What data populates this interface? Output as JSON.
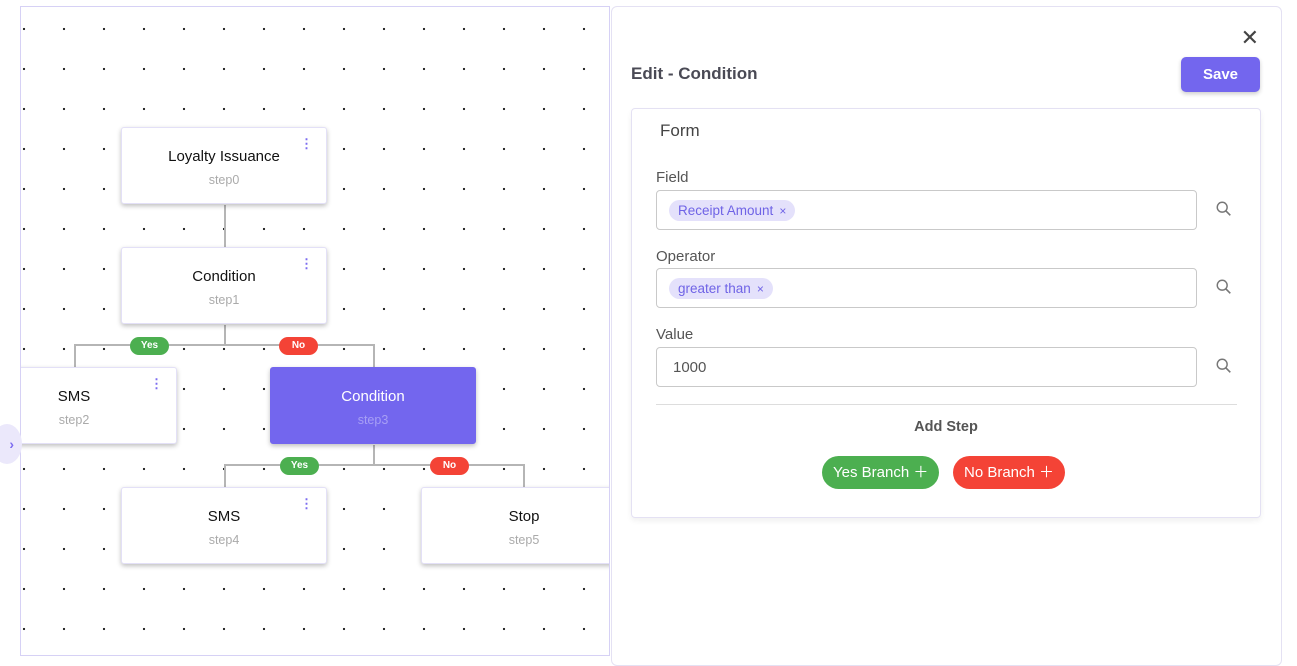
{
  "canvas": {
    "nodes": [
      {
        "title": "Loyalty Issuance",
        "step": "step0"
      },
      {
        "title": "Condition",
        "step": "step1"
      },
      {
        "title": "SMS",
        "step": "step2"
      },
      {
        "title": "Condition",
        "step": "step3",
        "active": true
      },
      {
        "title": "SMS",
        "step": "step4"
      },
      {
        "title": "Stop",
        "step": "step5"
      }
    ],
    "yes_label": "Yes",
    "no_label": "No",
    "menu_glyph": "⋮",
    "toggle_glyph": "›"
  },
  "panel": {
    "close_glyph": "✕",
    "title": "Edit - Condition",
    "save_label": "Save",
    "form": {
      "title": "Form",
      "field": {
        "label": "Field",
        "chip": "Receipt Amount"
      },
      "operator": {
        "label": "Operator",
        "chip": "greater than"
      },
      "value": {
        "label": "Value",
        "value": "1000"
      },
      "chip_remove": "×",
      "add_step": "Add Step",
      "yes_branch": "Yes Branch ＋",
      "no_branch": "No Branch ＋"
    }
  },
  "colors": {
    "accent": "#7366ee",
    "yes": "#4caf50",
    "no": "#f44336"
  }
}
